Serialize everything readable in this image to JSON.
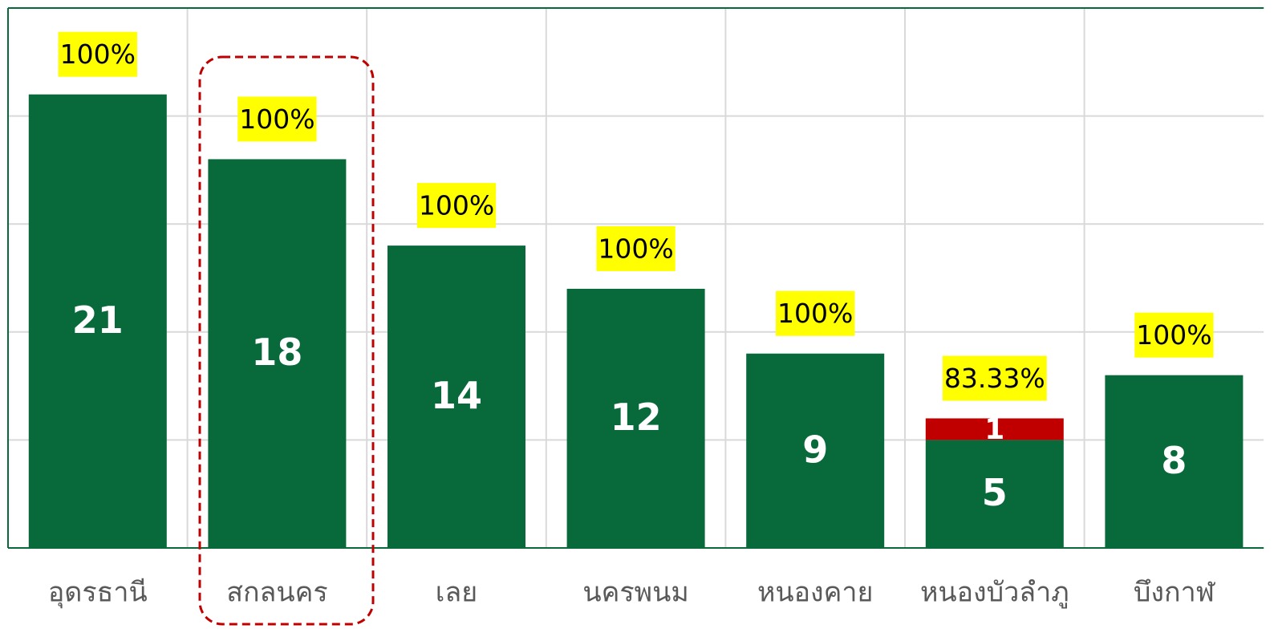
{
  "chart_data": {
    "type": "stacked_bar",
    "categories": [
      "อุดรธานี",
      "สกลนคร",
      "เลย",
      "นครพนม",
      "หนองคาย",
      "หนองบัวลำภู",
      "บึงกาฬ"
    ],
    "series": [
      {
        "color": "#08693a",
        "values": [
          21,
          18,
          14,
          12,
          9,
          5,
          8
        ]
      },
      {
        "color": "#c00000",
        "values": [
          null,
          null,
          null,
          null,
          null,
          1,
          null
        ]
      }
    ],
    "annotations": [
      "100%",
      "100%",
      "100%",
      "100%",
      "100%",
      "83.33%",
      "100%"
    ],
    "annotation_color": "#ffff00",
    "ylim": [
      0,
      25
    ],
    "yticks": [
      0,
      5,
      10,
      15,
      20,
      25
    ],
    "grid": true
  }
}
